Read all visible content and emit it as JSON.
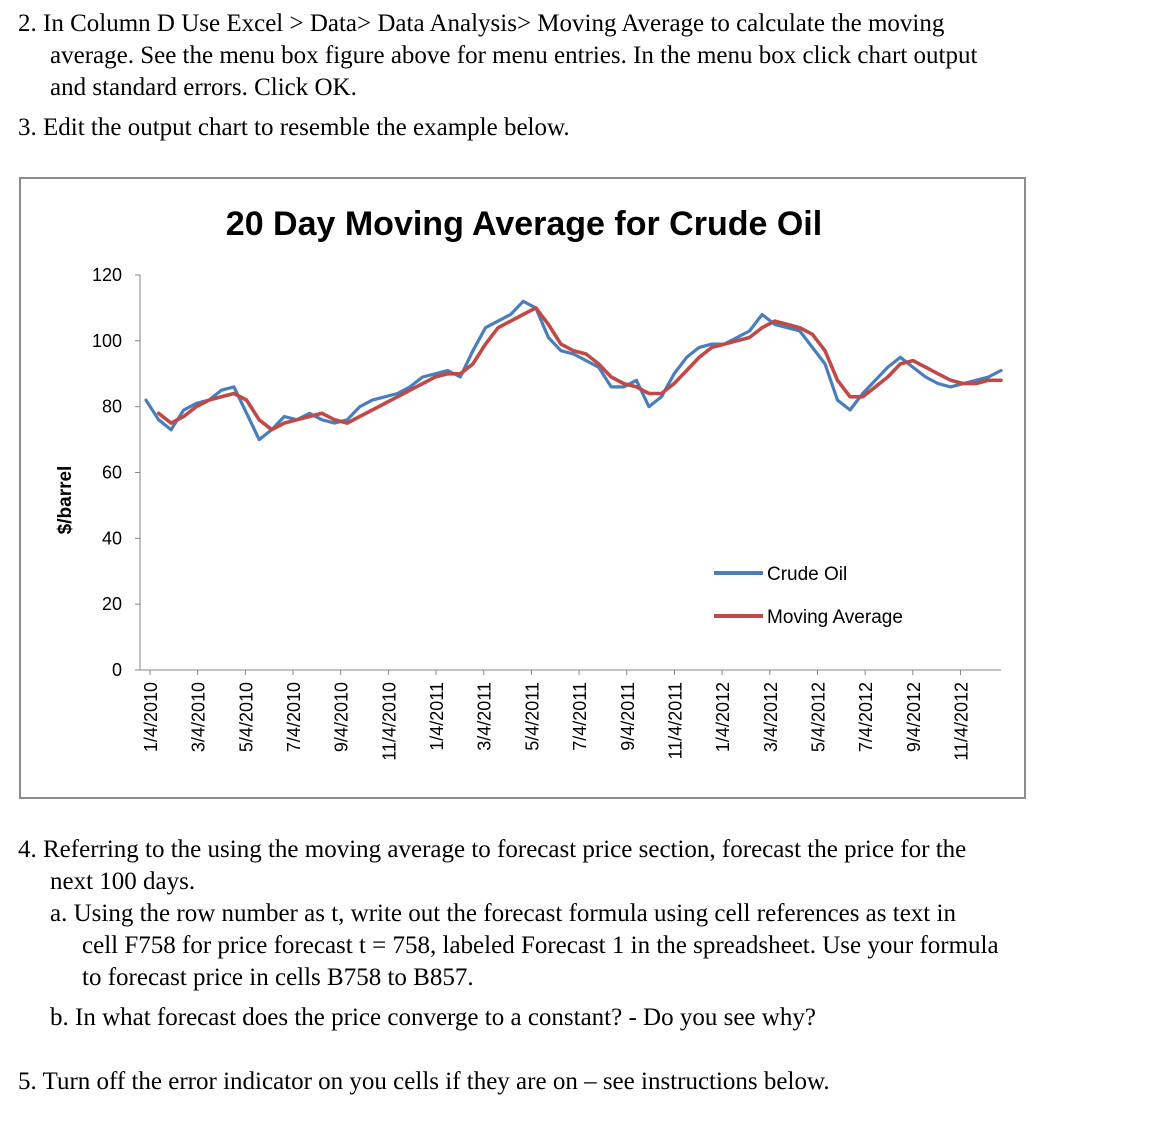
{
  "doc": {
    "item2": {
      "lines": [
        "2. In Column D Use Excel > Data> Data Analysis> Moving Average to calculate the moving",
        "average. See the menu box figure above for menu entries. In the menu box click chart output",
        "and standard errors. Click OK."
      ]
    },
    "item3": "3. Edit the output chart to resemble the example below.",
    "item4": {
      "lines": [
        "4. Referring to the using the moving average to forecast price section, forecast the price for the",
        "next 100 days."
      ]
    },
    "item4a": {
      "lines": [
        "a. Using the row number as t, write out the forecast formula using cell references as text in",
        "cell F758 for price forecast t = 758, labeled Forecast 1 in the spreadsheet. Use your formula",
        "to forecast price in cells B758 to B857."
      ]
    },
    "item4b": "b. In what forecast does the price converge to a constant? - Do you see why?",
    "item5": "5. Turn off the error indicator on you cells if they are on – see instructions below."
  },
  "chart_data": {
    "type": "line",
    "title": "20 Day Moving Average for Crude Oil",
    "ylabel": "$/barrel",
    "xlabel": "",
    "ylim": [
      0,
      120
    ],
    "yticks": [
      "0",
      "20",
      "40",
      "60",
      "80",
      "100",
      "120"
    ],
    "xtick_labels": [
      "1/4/2010",
      "3/4/2010",
      "5/4/2010",
      "7/4/2010",
      "9/4/2010",
      "11/4/2010",
      "1/4/2011",
      "3/4/2011",
      "5/4/2011",
      "7/4/2011",
      "9/4/2011",
      "11/4/2011",
      "1/4/2012",
      "3/4/2012",
      "5/4/2012",
      "7/4/2012",
      "9/4/2012",
      "11/4/2012"
    ],
    "legend_position": "right",
    "grid": false,
    "x": [
      "1/4/2010",
      "1/20/2010",
      "2/5/2010",
      "2/21/2010",
      "3/9/2010",
      "3/25/2010",
      "4/10/2010",
      "4/26/2010",
      "5/12/2010",
      "5/28/2010",
      "6/13/2010",
      "6/29/2010",
      "7/15/2010",
      "7/31/2010",
      "8/16/2010",
      "9/1/2010",
      "9/17/2010",
      "10/3/2010",
      "10/19/2010",
      "11/4/2010",
      "11/20/2010",
      "12/6/2010",
      "12/22/2010",
      "1/7/2011",
      "1/23/2011",
      "2/8/2011",
      "2/24/2011",
      "3/12/2011",
      "3/28/2011",
      "4/13/2011",
      "4/29/2011",
      "5/15/2011",
      "5/31/2011",
      "6/16/2011",
      "7/2/2011",
      "7/18/2011",
      "8/3/2011",
      "8/19/2011",
      "9/4/2011",
      "9/20/2011",
      "10/6/2011",
      "10/22/2011",
      "11/7/2011",
      "11/23/2011",
      "12/9/2011",
      "12/25/2011",
      "1/10/2012",
      "1/26/2012",
      "2/11/2012",
      "2/27/2012",
      "3/14/2012",
      "3/30/2012",
      "4/15/2012",
      "5/1/2012",
      "5/17/2012",
      "6/2/2012",
      "6/18/2012",
      "7/4/2012",
      "7/20/2012",
      "8/5/2012",
      "8/21/2012",
      "9/6/2012",
      "9/22/2012",
      "10/8/2012",
      "10/24/2012",
      "11/9/2012",
      "11/25/2012",
      "12/11/2012",
      "12/27/2012"
    ],
    "series": [
      {
        "name": "Crude Oil",
        "color": "#4a7ebb",
        "values": [
          82,
          76,
          73,
          79,
          81,
          82,
          85,
          86,
          78,
          70,
          73,
          77,
          76,
          78,
          76,
          75,
          76,
          80,
          82,
          83,
          84,
          86,
          89,
          90,
          91,
          89,
          97,
          104,
          106,
          108,
          112,
          110,
          101,
          97,
          96,
          94,
          92,
          86,
          86,
          88,
          80,
          83,
          90,
          95,
          98,
          99,
          99,
          101,
          103,
          108,
          105,
          104,
          103,
          98,
          93,
          82,
          79,
          84,
          88,
          92,
          95,
          92,
          89,
          87,
          86,
          87,
          88,
          89,
          91
        ]
      },
      {
        "name": "Moving Average",
        "color": "#be4b48",
        "values": [
          null,
          78,
          75,
          77,
          80,
          82,
          83,
          84,
          82,
          76,
          73,
          75,
          76,
          77,
          78,
          76,
          75,
          77,
          79,
          81,
          83,
          85,
          87,
          89,
          90,
          90,
          93,
          99,
          104,
          106,
          108,
          110,
          105,
          99,
          97,
          96,
          93,
          89,
          87,
          86,
          84,
          84,
          87,
          91,
          95,
          98,
          99,
          100,
          101,
          104,
          106,
          105,
          104,
          102,
          97,
          88,
          83,
          83,
          86,
          89,
          93,
          94,
          92,
          90,
          88,
          87,
          87,
          88,
          88
        ]
      }
    ]
  }
}
